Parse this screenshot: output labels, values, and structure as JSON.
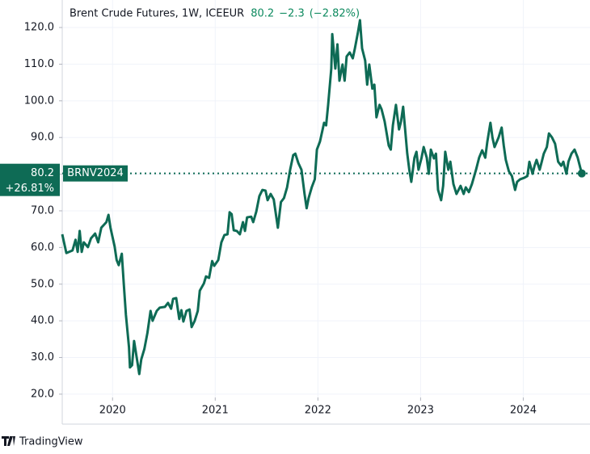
{
  "chart_data": {
    "type": "line",
    "title": "Brent Crude Futures, 1W, ICEEUR",
    "last_price": 80.2,
    "change": "−2.3",
    "change_pct": "(−2.82%)",
    "period_change": "+26.81%",
    "brand": "TradingView",
    "grid": true,
    "xlim": [
      2019.51,
      2024.65
    ],
    "ylim": [
      19.1,
      127.5
    ],
    "xticks": [
      2020,
      2021,
      2022,
      2023,
      2024
    ],
    "yticks": [
      {
        "value": 20,
        "label": "20.0"
      },
      {
        "value": 30,
        "label": "30.0"
      },
      {
        "value": 40,
        "label": "40.0"
      },
      {
        "value": 50,
        "label": "50.0"
      },
      {
        "value": 60,
        "label": "60.0"
      },
      {
        "value": 70,
        "label": "70.0"
      },
      {
        "value": 80,
        "label": "80.0"
      },
      {
        "value": 90,
        "label": "90.0"
      },
      {
        "value": 100,
        "label": "100.0"
      },
      {
        "value": 110,
        "label": "110.0"
      },
      {
        "value": 120,
        "label": "120.0"
      }
    ],
    "x": [
      2019.51,
      2019.55,
      2019.61,
      2019.64,
      2019.66,
      2019.68,
      2019.7,
      2019.72,
      2019.76,
      2019.79,
      2019.83,
      2019.86,
      2019.89,
      2019.94,
      2019.96,
      2019.98,
      2020.02,
      2020.04,
      2020.06,
      2020.09,
      2020.11,
      2020.13,
      2020.16,
      2020.17,
      2020.19,
      2020.21,
      2020.24,
      2020.26,
      2020.28,
      2020.31,
      2020.34,
      2020.37,
      2020.39,
      2020.43,
      2020.46,
      2020.51,
      2020.54,
      2020.57,
      2020.59,
      2020.62,
      2020.65,
      2020.67,
      2020.69,
      2020.72,
      2020.75,
      2020.77,
      2020.8,
      2020.83,
      2020.85,
      2020.89,
      2020.91,
      2020.94,
      2020.97,
      2020.99,
      2021.03,
      2021.06,
      2021.09,
      2021.12,
      2021.14,
      2021.16,
      2021.18,
      2021.21,
      2021.24,
      2021.27,
      2021.29,
      2021.31,
      2021.35,
      2021.37,
      2021.4,
      2021.43,
      2021.46,
      2021.49,
      2021.51,
      2021.54,
      2021.57,
      2021.61,
      2021.64,
      2021.67,
      2021.7,
      2021.73,
      2021.76,
      2021.78,
      2021.81,
      2021.84,
      2021.87,
      2021.89,
      2021.91,
      2021.94,
      2021.97,
      2021.99,
      2022.02,
      2022.06,
      2022.08,
      2022.1,
      2022.13,
      2022.14,
      2022.17,
      2022.19,
      2022.21,
      2022.24,
      2022.26,
      2022.28,
      2022.31,
      2022.34,
      2022.36,
      2022.39,
      2022.41,
      2022.43,
      2022.46,
      2022.48,
      2022.5,
      2022.53,
      2022.55,
      2022.57,
      2022.6,
      2022.62,
      2022.65,
      2022.69,
      2022.71,
      2022.73,
      2022.76,
      2022.79,
      2022.81,
      2022.83,
      2022.87,
      2022.89,
      2022.91,
      2022.94,
      2022.96,
      2022.98,
      2023.01,
      2023.03,
      2023.06,
      2023.08,
      2023.1,
      2023.13,
      2023.15,
      2023.17,
      2023.2,
      2023.22,
      2023.24,
      2023.27,
      2023.29,
      2023.32,
      2023.35,
      2023.37,
      2023.39,
      2023.42,
      2023.44,
      2023.47,
      2023.5,
      2023.54,
      2023.57,
      2023.6,
      2023.63,
      2023.65,
      2023.68,
      2023.7,
      2023.72,
      2023.76,
      2023.79,
      2023.81,
      2023.83,
      2023.86,
      2023.89,
      2023.92,
      2023.94,
      2023.97,
      2024.01,
      2024.04,
      2024.06,
      2024.09,
      2024.11,
      2024.13,
      2024.16,
      2024.18,
      2024.2,
      2024.23,
      2024.25,
      2024.28,
      2024.31,
      2024.34,
      2024.37,
      2024.39,
      2024.42,
      2024.44,
      2024.47,
      2024.5,
      2024.53,
      2024.57
    ],
    "series": [
      {
        "name": "BRNV2024",
        "color": "#0e6b55",
        "values": [
          63.6,
          58.5,
          59.2,
          62.1,
          58.8,
          64.5,
          58.8,
          61.4,
          60.1,
          62.5,
          63.8,
          61.4,
          65.4,
          66.9,
          68.9,
          65.4,
          60.3,
          56.6,
          55.2,
          58.3,
          49.9,
          41.6,
          32.8,
          27.3,
          27.9,
          34.5,
          29.2,
          25.5,
          29.5,
          32.3,
          36.7,
          42.7,
          40.0,
          42.7,
          43.6,
          43.8,
          44.9,
          43.3,
          46.0,
          46.2,
          40.5,
          42.9,
          39.8,
          42.7,
          43.1,
          38.3,
          40.0,
          42.7,
          48.2,
          50.2,
          52.1,
          51.7,
          56.3,
          55.0,
          56.6,
          61.4,
          63.4,
          63.6,
          69.6,
          69.1,
          64.7,
          64.5,
          63.6,
          66.9,
          64.5,
          68.2,
          68.4,
          66.9,
          69.8,
          74.0,
          75.7,
          75.5,
          72.9,
          74.6,
          73.1,
          65.4,
          72.4,
          73.5,
          76.4,
          81.2,
          85.2,
          85.6,
          83.0,
          81.2,
          74.6,
          70.7,
          73.5,
          76.4,
          78.6,
          86.7,
          88.9,
          94.0,
          93.3,
          98.9,
          108.8,
          118.2,
          108.8,
          115.4,
          105.5,
          109.9,
          105.5,
          112.1,
          113.2,
          111.6,
          114.3,
          118.7,
          122.0,
          114.3,
          111.0,
          104.4,
          109.9,
          103.3,
          104.4,
          95.5,
          98.9,
          97.7,
          94.4,
          87.8,
          86.7,
          93.3,
          98.9,
          92.2,
          94.4,
          98.4,
          85.6,
          81.2,
          77.9,
          84.5,
          86.1,
          81.2,
          84.5,
          87.4,
          84.5,
          80.1,
          86.7,
          84.3,
          85.6,
          75.7,
          72.9,
          76.8,
          86.1,
          81.2,
          83.4,
          77.3,
          74.6,
          75.7,
          76.8,
          74.6,
          76.4,
          75.1,
          77.3,
          81.2,
          84.5,
          86.5,
          84.5,
          88.9,
          94.0,
          90.0,
          87.4,
          90.0,
          92.7,
          87.8,
          83.9,
          80.8,
          79.5,
          75.7,
          77.9,
          78.6,
          79.0,
          79.5,
          83.4,
          80.1,
          82.3,
          83.9,
          81.2,
          83.4,
          85.6,
          87.4,
          91.1,
          90.0,
          88.3,
          83.4,
          82.3,
          83.4,
          80.1,
          83.4,
          85.6,
          86.7,
          84.5,
          80.2
        ]
      }
    ]
  }
}
